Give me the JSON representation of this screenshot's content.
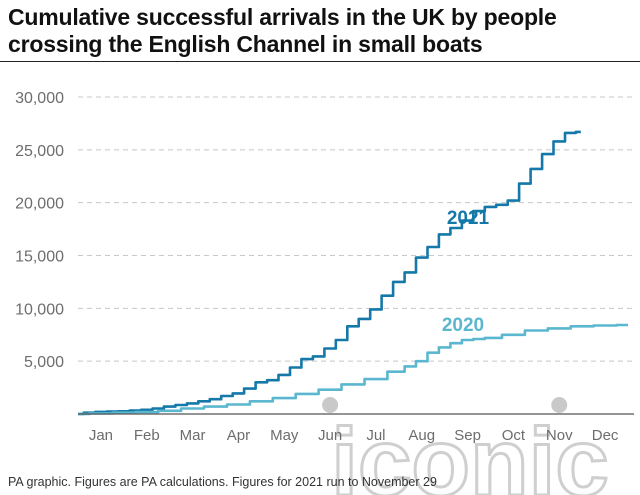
{
  "header": {
    "title_line1": "Cumulative successful arrivals in the UK by people",
    "title_line2": "crossing the English Channel in small boats"
  },
  "footnote": "PA graphic. Figures are PA calculations. Figures for 2021 run to November 29",
  "watermark": "iconic",
  "colors": {
    "s2021": "#1478a8",
    "s2020": "#5ab7cf",
    "grid": "#c8c8c8",
    "axis": "#555555",
    "tick": "#6d6d6d",
    "watermark": "#cfcfcf"
  },
  "chart_data": {
    "type": "line",
    "xlabel": "",
    "ylabel": "",
    "ylim": [
      0,
      30000
    ],
    "xlim": [
      0,
      12
    ],
    "y_ticks": [
      "30,000",
      "25,000",
      "20,000",
      "15,000",
      "10,000",
      "5,000"
    ],
    "y_tick_values": [
      30000,
      25000,
      20000,
      15000,
      10000,
      5000
    ],
    "categories": [
      "Jan",
      "Feb",
      "Mar",
      "Apr",
      "May",
      "Jun",
      "Jul",
      "Aug",
      "Sep",
      "Oct",
      "Nov",
      "Dec"
    ],
    "grid": true,
    "series": [
      {
        "name": "2021",
        "x": [
          0,
          0.25,
          0.5,
          0.75,
          1,
          1.25,
          1.5,
          1.75,
          2,
          2.25,
          2.5,
          2.75,
          3,
          3.25,
          3.5,
          3.75,
          4,
          4.25,
          4.5,
          4.75,
          5,
          5.25,
          5.5,
          5.75,
          6,
          6.25,
          6.5,
          6.75,
          7,
          7.25,
          7.5,
          7.75,
          8,
          8.25,
          8.5,
          8.75,
          9,
          9.25,
          9.5,
          9.75,
          10,
          10.25,
          10.5,
          10.75,
          10.97
        ],
        "values": [
          0,
          120,
          200,
          230,
          260,
          320,
          400,
          520,
          700,
          850,
          1000,
          1200,
          1400,
          1700,
          1950,
          2400,
          3000,
          3200,
          3700,
          4400,
          5200,
          5450,
          6200,
          7000,
          8300,
          9000,
          9900,
          11200,
          12500,
          13400,
          14800,
          15800,
          17000,
          17600,
          18300,
          19200,
          19600,
          19800,
          20200,
          21800,
          23200,
          24600,
          25800,
          26600,
          26700
        ]
      },
      {
        "name": "2020",
        "x": [
          0,
          0.5,
          1,
          1.5,
          2,
          2.5,
          3,
          3.5,
          4,
          4.5,
          5,
          5.5,
          6,
          6.5,
          7,
          7.25,
          7.5,
          7.75,
          8,
          8.25,
          8.5,
          8.75,
          9,
          9.5,
          10,
          10.5,
          11,
          11.5,
          12
        ],
        "values": [
          0,
          60,
          120,
          180,
          300,
          520,
          700,
          900,
          1200,
          1500,
          1900,
          2300,
          2800,
          3300,
          4000,
          4500,
          5000,
          5800,
          6300,
          6700,
          7000,
          7100,
          7200,
          7500,
          7900,
          8100,
          8300,
          8380,
          8420
        ]
      }
    ],
    "annotations": [
      "2021",
      "2020"
    ]
  }
}
